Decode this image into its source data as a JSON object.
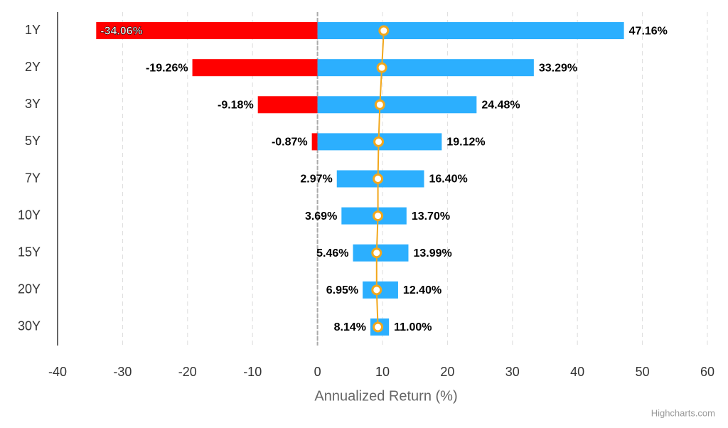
{
  "chart_data": {
    "type": "range-bar",
    "categories": [
      "1Y",
      "2Y",
      "3Y",
      "5Y",
      "7Y",
      "10Y",
      "15Y",
      "20Y",
      "30Y"
    ],
    "low": {
      "values": [
        -34.06,
        -19.26,
        -9.18,
        -0.87,
        2.97,
        3.69,
        5.46,
        6.95,
        8.14
      ],
      "value_labels": [
        "-34.06%",
        "-19.26%",
        "-9.18%",
        "-0.87%",
        "2.97%",
        "3.69%",
        "5.46%",
        "6.95%",
        "8.14%"
      ]
    },
    "high": {
      "values": [
        47.16,
        33.29,
        24.48,
        19.12,
        16.4,
        13.7,
        13.99,
        12.4,
        11.0
      ],
      "value_labels": [
        "47.16%",
        "33.29%",
        "24.48%",
        "19.12%",
        "16.40%",
        "13.70%",
        "13.99%",
        "12.40%",
        "11.00%"
      ]
    },
    "average": {
      "values": [
        10.2,
        9.9,
        9.6,
        9.4,
        9.3,
        9.3,
        9.1,
        9.1,
        9.3
      ],
      "color": "#f2a71b"
    },
    "negative_color": "#ff0000",
    "positive_color": "#2caffe",
    "xlim": [
      -40,
      60
    ],
    "xticks": [
      -40,
      -30,
      -20,
      -10,
      0,
      10,
      20,
      30,
      40,
      50,
      60
    ],
    "xlabel": "Annualized Return (%)",
    "grid": true,
    "credit": "Highcharts.com"
  }
}
